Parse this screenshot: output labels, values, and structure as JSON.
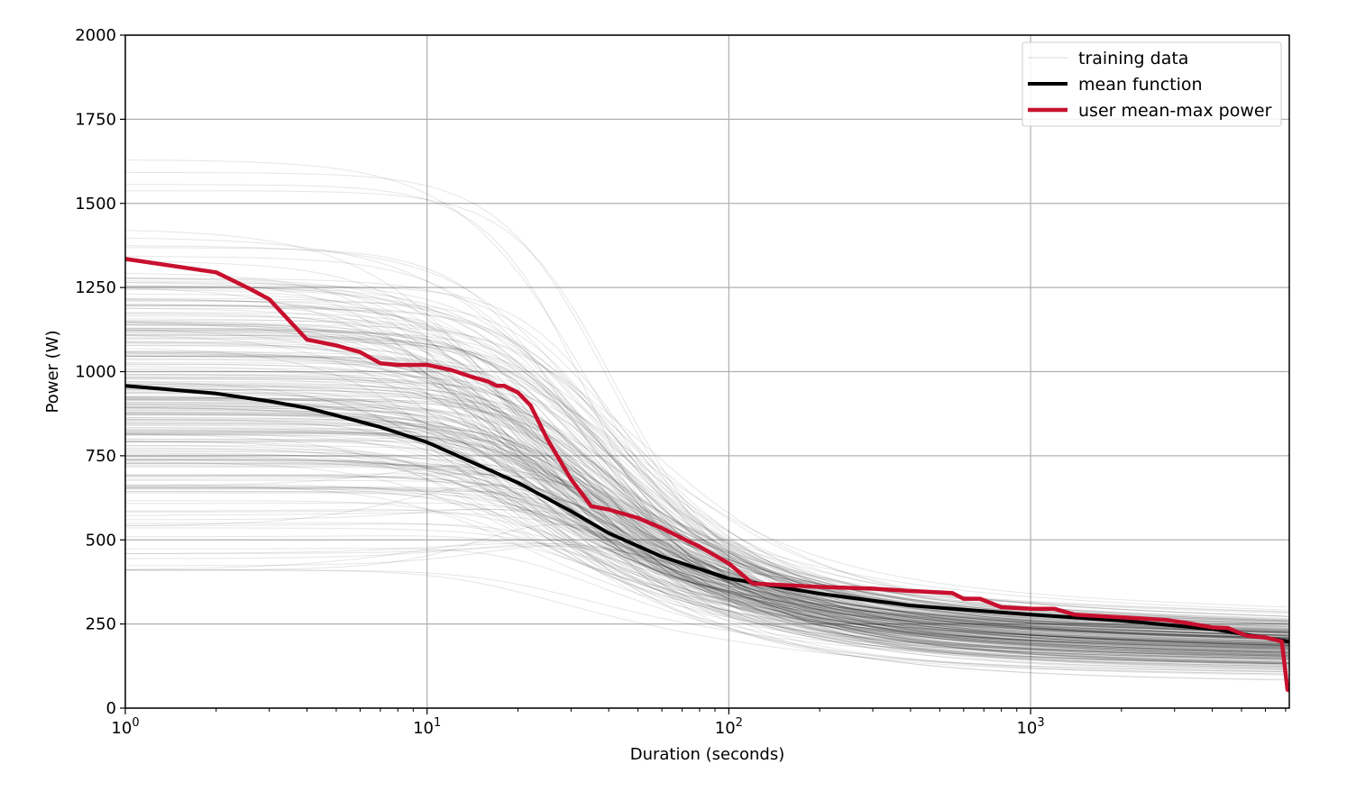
{
  "chart_data": {
    "type": "line",
    "xscale": "log",
    "xlabel": "Duration (seconds)",
    "ylabel": "Power (W)",
    "xlim": [
      1,
      7200
    ],
    "ylim": [
      0,
      2000
    ],
    "grid": true,
    "legend_position": "top-right",
    "x_ticks": [
      {
        "value": 1,
        "base": "10",
        "exp": "0"
      },
      {
        "value": 10,
        "base": "10",
        "exp": "1"
      },
      {
        "value": 100,
        "base": "10",
        "exp": "2"
      },
      {
        "value": 1000,
        "base": "10",
        "exp": "3"
      }
    ],
    "y_ticks": [
      0,
      250,
      500,
      750,
      1000,
      1250,
      1500,
      1750,
      2000
    ],
    "series": [
      {
        "name": "training data",
        "color": "#000000",
        "style": "many faint thin curves",
        "description_params": {
          "count": 260,
          "p1_range": [
            410,
            1630
          ],
          "p_end_range": [
            60,
            320
          ]
        }
      },
      {
        "name": "mean function",
        "color": "#000000",
        "points": [
          [
            1,
            958
          ],
          [
            2,
            935
          ],
          [
            3,
            912
          ],
          [
            4,
            892
          ],
          [
            5,
            870
          ],
          [
            7,
            835
          ],
          [
            10,
            790
          ],
          [
            15,
            720
          ],
          [
            20,
            670
          ],
          [
            30,
            585
          ],
          [
            40,
            520
          ],
          [
            60,
            450
          ],
          [
            100,
            385
          ],
          [
            200,
            340
          ],
          [
            400,
            305
          ],
          [
            700,
            288
          ],
          [
            1000,
            278
          ],
          [
            2000,
            260
          ],
          [
            4000,
            235
          ],
          [
            7200,
            197
          ]
        ]
      },
      {
        "name": "user mean-max power",
        "color": "#c8102e",
        "points": [
          [
            1,
            1335
          ],
          [
            2,
            1295
          ],
          [
            2.6,
            1245
          ],
          [
            3,
            1215
          ],
          [
            4,
            1095
          ],
          [
            5,
            1078
          ],
          [
            6,
            1058
          ],
          [
            7,
            1025
          ],
          [
            8,
            1020
          ],
          [
            10,
            1020
          ],
          [
            12,
            1005
          ],
          [
            14,
            985
          ],
          [
            16,
            970
          ],
          [
            17,
            958
          ],
          [
            18,
            958
          ],
          [
            20,
            938
          ],
          [
            22,
            900
          ],
          [
            25,
            800
          ],
          [
            30,
            680
          ],
          [
            35,
            600
          ],
          [
            40,
            590
          ],
          [
            50,
            565
          ],
          [
            60,
            535
          ],
          [
            70,
            505
          ],
          [
            80,
            480
          ],
          [
            100,
            430
          ],
          [
            120,
            370
          ],
          [
            200,
            360
          ],
          [
            300,
            355
          ],
          [
            400,
            348
          ],
          [
            550,
            342
          ],
          [
            600,
            325
          ],
          [
            680,
            325
          ],
          [
            800,
            300
          ],
          [
            1000,
            295
          ],
          [
            1200,
            295
          ],
          [
            1400,
            278
          ],
          [
            2000,
            270
          ],
          [
            2800,
            262
          ],
          [
            3200,
            255
          ],
          [
            4000,
            240
          ],
          [
            4500,
            238
          ],
          [
            5200,
            215
          ],
          [
            6000,
            210
          ],
          [
            6800,
            198
          ],
          [
            7100,
            55
          ],
          [
            7200,
            52
          ]
        ]
      }
    ]
  }
}
